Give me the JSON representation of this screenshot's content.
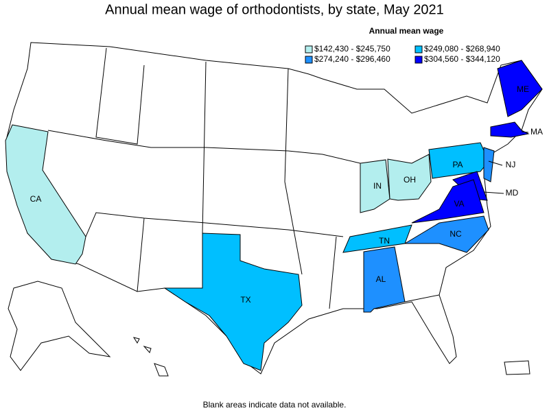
{
  "title": "Annual mean wage of orthodontists, by state, May 2021",
  "legend": {
    "title": "Annual mean wage",
    "items": [
      {
        "label": "$142,430 - $245,750",
        "color": "#b3eeee"
      },
      {
        "label": "$249,080 - $268,940",
        "color": "#00bfff"
      },
      {
        "label": "$274,240 - $296,460",
        "color": "#1e90ff"
      },
      {
        "label": "$304,560 - $344,120",
        "color": "#0000ff"
      }
    ]
  },
  "states": [
    {
      "label": "CA",
      "color": "#b3eeee"
    },
    {
      "label": "TX",
      "color": "#00bfff"
    },
    {
      "label": "IN",
      "color": "#b3eeee"
    },
    {
      "label": "OH",
      "color": "#b3eeee"
    },
    {
      "label": "PA",
      "color": "#00bfff"
    },
    {
      "label": "NJ",
      "color": "#1e90ff"
    },
    {
      "label": "MD",
      "color": "#0000ff"
    },
    {
      "label": "VA",
      "color": "#0000ff"
    },
    {
      "label": "NC",
      "color": "#1e90ff"
    },
    {
      "label": "TN",
      "color": "#00bfff"
    },
    {
      "label": "AL",
      "color": "#1e90ff"
    },
    {
      "label": "ME",
      "color": "#0000ff"
    },
    {
      "label": "MA",
      "color": "#0000ff"
    }
  ],
  "note": "Blank areas indicate data not available."
}
